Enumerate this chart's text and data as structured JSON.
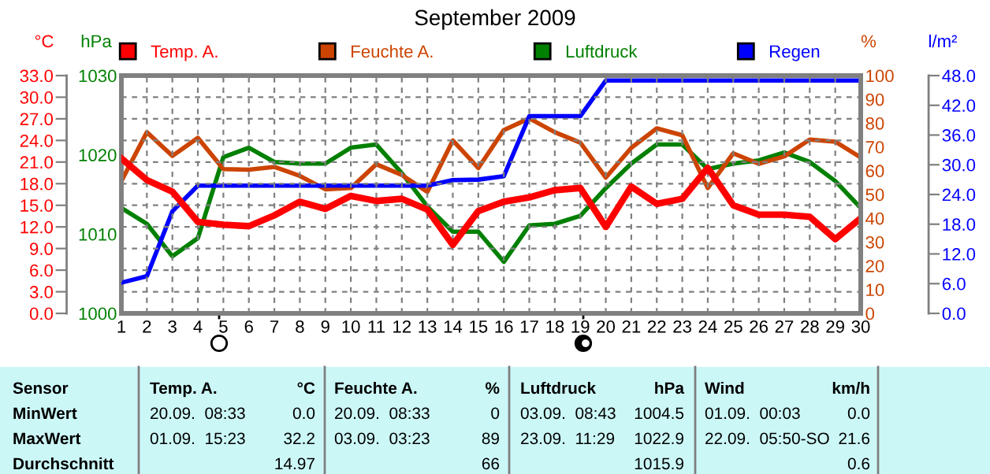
{
  "chart_data": [
    {
      "type": "line",
      "title": "September 2009",
      "categories": [
        "1",
        "2",
        "3",
        "4",
        "5",
        "6",
        "7",
        "8",
        "9",
        "10",
        "11",
        "12",
        "13",
        "14",
        "15",
        "16",
        "17",
        "18",
        "19",
        "20",
        "21",
        "22",
        "23",
        "24",
        "25",
        "26",
        "27",
        "28",
        "29",
        "30"
      ],
      "series": [
        {
          "name": "Temp. A.",
          "color": "#ff0000",
          "values": [
            21.5,
            18.5,
            16.9,
            12.7,
            12.3,
            12.1,
            13.6,
            15.5,
            14.5,
            16.3,
            15.6,
            15.9,
            14.4,
            9.5,
            14.2,
            15.5,
            16.1,
            17.1,
            17.4,
            12.0,
            17.6,
            15.2,
            15.9,
            20.2,
            15.0,
            13.7,
            13.7,
            13.4,
            10.3,
            13.2
          ]
        },
        {
          "name": "Feuchte A.",
          "color": "#cc4400",
          "axis": "y2",
          "values": [
            55.6,
            76.2,
            66.2,
            73.8,
            60.7,
            60.4,
            61.6,
            57.8,
            52.2,
            52.7,
            62.7,
            58.2,
            51.1,
            72.7,
            61.1,
            77.1,
            82,
            76.2,
            71.8,
            57.1,
            69.6,
            77.8,
            74.9,
            52.7,
            67.3,
            62.9,
            66,
            73.1,
            72.2,
            65.6
          ]
        },
        {
          "name": "Luftdruck",
          "color": "#008000",
          "axis": "y3",
          "values": [
            1013.3,
            1011.3,
            1007.2,
            1009.5,
            1019.7,
            1020.9,
            1019.1,
            1018.9,
            1018.9,
            1020.9,
            1021.3,
            1017.7,
            1013.5,
            1010.3,
            1010.3,
            1006.5,
            1011.1,
            1011.3,
            1012.3,
            1015.8,
            1018.9,
            1021.3,
            1021.3,
            1018.2,
            1018.9,
            1019.3,
            1020.3,
            1019.1,
            1016.7,
            1013.3
          ]
        }
      ],
      "ylabel": "°C",
      "ylim": [
        0,
        33
      ],
      "yticks": [
        {
          "value": 0,
          "label": "0.0"
        },
        {
          "value": 3,
          "label": "3.0"
        },
        {
          "value": 6,
          "label": "6.0"
        },
        {
          "value": 9,
          "label": "9.0"
        },
        {
          "value": 12,
          "label": "12.0"
        },
        {
          "value": 15,
          "label": "15.0"
        },
        {
          "value": 18,
          "label": "18.0"
        },
        {
          "value": 21,
          "label": "21.0"
        },
        {
          "value": 24,
          "label": "24.0"
        },
        {
          "value": 27,
          "label": "27.0"
        },
        {
          "value": 30,
          "label": "30.0"
        },
        {
          "value": 33,
          "label": "33.0"
        }
      ],
      "y2label": "%",
      "y2lim": [
        0,
        100
      ],
      "y2ticks": [
        0,
        10,
        20,
        30,
        40,
        50,
        60,
        70,
        80,
        90,
        100
      ],
      "y3label": "hPa",
      "y3lim": [
        1000,
        1030
      ],
      "y3ticks": [
        1000,
        1010,
        1020,
        1030
      ],
      "grid": true,
      "legend": "top",
      "line_style": "solid",
      "marker": "none",
      "annotations": [
        "Sensor",
        "Temp. A.",
        "°C",
        "Feuchte A.",
        "%",
        "Luftdruck",
        "hPa",
        "Wind",
        "km/h",
        "MinWert",
        "20.09.  08:33",
        "0.0",
        "20.09.  08:33",
        "0",
        "03.09.  08:43",
        "1004.5",
        "01.09.  00:03",
        "0.0",
        "MaxWert",
        "01.09.  15:23",
        "32.2",
        "03.09.  03:23",
        "89",
        "23.09.  11:29",
        "1022.9",
        "22.09.  05:50-SO",
        "21.6",
        "Durchschnitt",
        "14.97",
        "66",
        "1015.9",
        "0.6"
      ]
    },
    {
      "type": "line",
      "categories": [
        "1",
        "2",
        "3",
        "4",
        "5",
        "6",
        "7",
        "8",
        "9",
        "10",
        "11",
        "12",
        "13",
        "14",
        "15",
        "16",
        "17",
        "18",
        "19",
        "20",
        "21",
        "22",
        "23",
        "24",
        "25",
        "26",
        "27",
        "28",
        "29",
        "30"
      ],
      "series": [
        {
          "name": "Regen",
          "color": "#0000ff",
          "values": [
            6.2,
            7.5,
            20.6,
            25.8,
            25.8,
            25.8,
            25.8,
            25.8,
            25.8,
            25.8,
            25.8,
            25.8,
            25.8,
            26.9,
            27,
            27.7,
            39.8,
            39.8,
            39.8,
            47,
            47,
            47,
            47,
            47,
            47,
            47,
            47,
            47,
            47,
            47
          ]
        }
      ],
      "ylabel": "l/m²",
      "ylim": [
        0,
        48
      ],
      "yticks": [
        {
          "value": 0,
          "label": "0.0"
        },
        {
          "value": 6,
          "label": "6.0"
        },
        {
          "value": 12,
          "label": "12.0"
        },
        {
          "value": 18,
          "label": "18.0"
        },
        {
          "value": 24,
          "label": "24.0"
        },
        {
          "value": 30,
          "label": "30.0"
        },
        {
          "value": 36,
          "label": "36.0"
        },
        {
          "value": 42,
          "label": "42.0"
        },
        {
          "value": 48,
          "label": "48.0"
        }
      ],
      "legend": "top",
      "tick_labels": "y",
      "line_style": "solid",
      "marker": "none"
    }
  ]
}
